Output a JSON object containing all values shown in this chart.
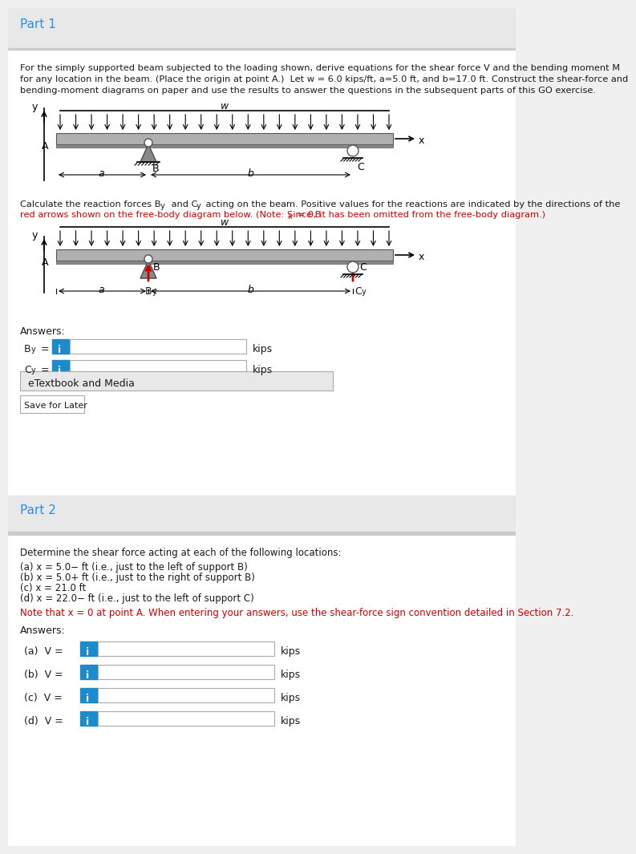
{
  "bg_color": "#f0f0f0",
  "white": "#ffffff",
  "blue_header": "#1e90ff",
  "dark_text": "#1a1a1a",
  "red_color": "#cc0000",
  "blue_btn": "#1a8ccc",
  "gray_border": "#aaaaaa",
  "light_gray": "#e8e8e8",
  "mid_gray": "#cccccc",
  "dark_gray": "#888888",
  "part1_header": "Part 1",
  "part2_header": "Part 2",
  "part1_body": "For the simply supported beam subjected to the loading shown, derive equations for the shear force V and the bending moment M\nfor any location in the beam. (Place the origin at point A.)  Let w = 6.0 kips/ft, a=5.0 ft, and b=17.0 ft. Construct the shear-force and\nbending-moment diagrams on paper and use the results to answer the questions in the subsequent parts of this GO exercise.",
  "calc_text_line1": "Calculate the reaction forces B",
  "calc_text_line1b": "y",
  "calc_text_line1c": " and C",
  "calc_text_line1d": "y",
  "calc_text_line1e": " acting on the beam. Positive values for the reactions are indicated by the directions of the",
  "calc_text_line2": "red arrows shown on the free-body diagram below. (Note: Since B",
  "calc_text_line2b": "x",
  "calc_text_line2c": " = 0, it has been omitted from the free-body diagram.)",
  "answers_label": "Answers:",
  "By_label": "B",
  "By_sub": "y",
  "By_eq": "=",
  "Cy_label": "C",
  "Cy_sub": "y",
  "Cy_eq": "=",
  "kips": "kips",
  "etextbook_label": "eTextbook and Media",
  "save_label": "Save for Later",
  "part2_body_line1": "Determine the shear force acting at each of the following locations:",
  "part2_items": [
    "(a) x = 5.0− ft (i.e., just to the left of support B)",
    "(b) x = 5.0+ ft (i.e., just to the right of support B)",
    "(c) x = 21.0 ft",
    "(d) x = 22.0− ft (i.e., just to the left of support C)"
  ],
  "part2_note": "Note that x = 0 at point A. When entering your answers, use the shear-force sign convention detailed in Section 7.2.",
  "answers2_label": "Answers:",
  "part2_answer_labels": [
    "(a)  V =",
    "(b)  V =",
    "(c)  V =",
    "(d)  V ="
  ]
}
